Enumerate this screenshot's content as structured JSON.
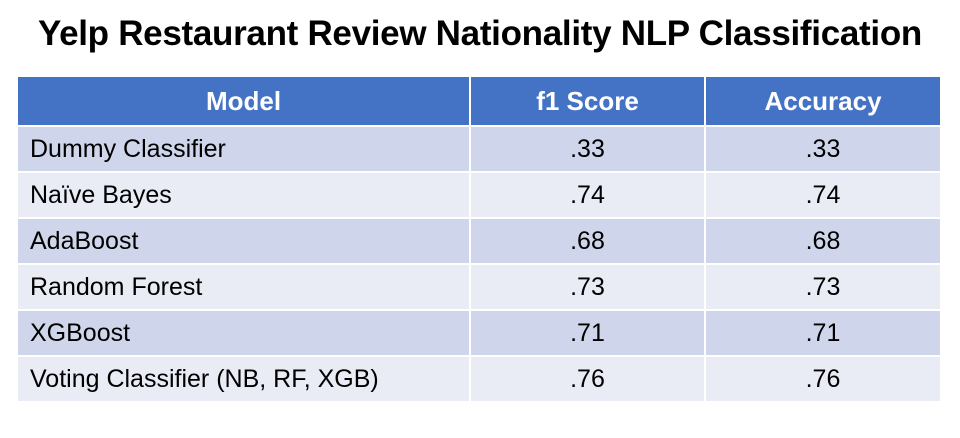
{
  "title": "Yelp Restaurant Review Nationality NLP Classification",
  "colors": {
    "header_bg": "#4472c4",
    "row_odd_bg": "#cfd5ea",
    "row_even_bg": "#e9ebf5",
    "header_text": "#ffffff"
  },
  "table": {
    "headers": [
      "Model",
      "f1 Score",
      "Accuracy"
    ],
    "rows": [
      {
        "model": "Dummy Classifier",
        "f1": ".33",
        "accuracy": ".33"
      },
      {
        "model": "Naïve Bayes",
        "f1": ".74",
        "accuracy": ".74"
      },
      {
        "model": "AdaBoost",
        "f1": ".68",
        "accuracy": ".68"
      },
      {
        "model": "Random Forest",
        "f1": ".73",
        "accuracy": ".73"
      },
      {
        "model": "XGBoost",
        "f1": ".71",
        "accuracy": ".71"
      },
      {
        "model": "Voting Classifier (NB, RF, XGB)",
        "f1": ".76",
        "accuracy": ".76"
      }
    ]
  }
}
